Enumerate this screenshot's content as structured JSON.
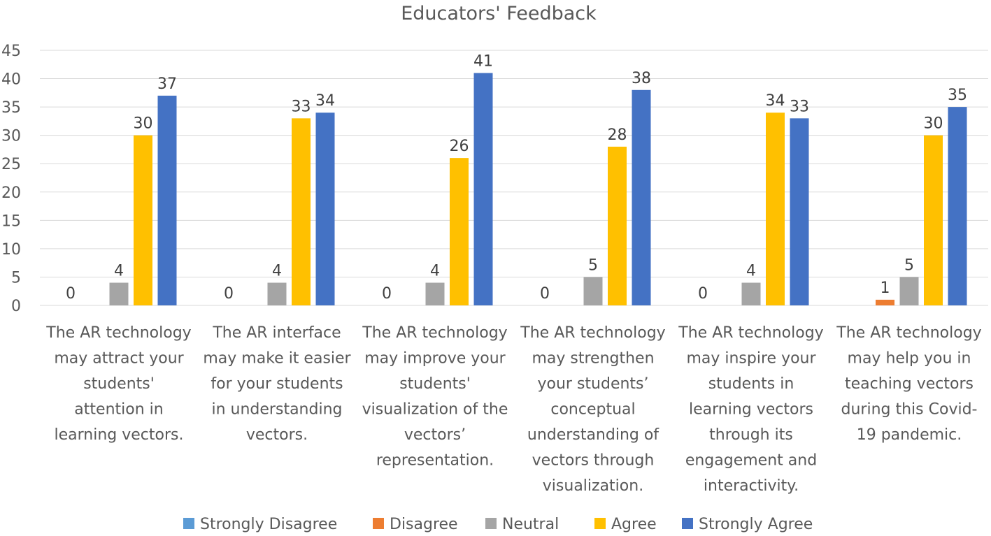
{
  "chart_data": {
    "type": "bar",
    "title": "Educators' Feedback",
    "xlabel": "",
    "ylabel": "",
    "ylim": [
      0,
      45
    ],
    "yticks": [
      0,
      5,
      10,
      15,
      20,
      25,
      30,
      35,
      40,
      45
    ],
    "grid": true,
    "legend_position": "bottom",
    "categories": [
      [
        "The AR technology",
        "may attract your",
        "students'",
        "attention in",
        "learning vectors."
      ],
      [
        "The AR interface",
        "may make it easier",
        "for your students",
        "in understanding",
        "vectors."
      ],
      [
        "The AR technology",
        "may improve your",
        "students'",
        "visualization of the",
        "vectors’",
        "representation."
      ],
      [
        "The AR technology",
        "may strengthen",
        "your students’",
        "conceptual",
        "understanding of",
        "vectors through",
        "visualization."
      ],
      [
        "The AR technology",
        "may inspire your",
        "students in",
        "learning vectors",
        "through its",
        "engagement and",
        "interactivity."
      ],
      [
        "The AR technology",
        "may help you in",
        "teaching vectors",
        "during this Covid-",
        "19 pandemic."
      ]
    ],
    "series": [
      {
        "name": "Strongly Disagree",
        "color": "#5B9BD5",
        "values": [
          0,
          0,
          0,
          0,
          0,
          null
        ]
      },
      {
        "name": "Disagree",
        "color": "#ED7D31",
        "values": [
          null,
          null,
          null,
          null,
          null,
          1
        ]
      },
      {
        "name": "Neutral",
        "color": "#A5A5A5",
        "values": [
          4,
          4,
          4,
          5,
          4,
          5
        ]
      },
      {
        "name": "Agree",
        "color": "#FFC000",
        "values": [
          30,
          33,
          26,
          28,
          34,
          30
        ]
      },
      {
        "name": "Strongly Agree",
        "color": "#4472C4",
        "values": [
          37,
          34,
          41,
          38,
          33,
          35
        ]
      }
    ]
  }
}
